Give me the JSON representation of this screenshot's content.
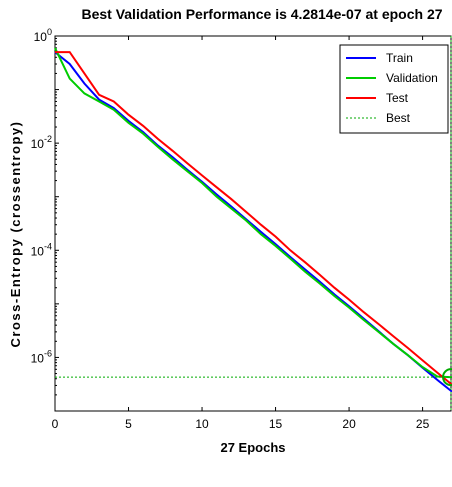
{
  "chart_data": {
    "type": "line",
    "title": "Best Validation Performance is 4.2814e-07 at epoch 27",
    "xlabel": "27 Epochs",
    "ylabel": "Cross-Entropy  (crossentropy)",
    "yscale": "log",
    "xlim": [
      0,
      27
    ],
    "ylim": [
      1e-07,
      1
    ],
    "xticks": [
      "0",
      "5",
      "10",
      "15",
      "20",
      "25"
    ],
    "yticks": [
      {
        "base": "10",
        "exp": "0",
        "value": 1
      },
      {
        "base": "10",
        "exp": "-2",
        "value": 0.01
      },
      {
        "base": "10",
        "exp": "-4",
        "value": 0.0001
      },
      {
        "base": "10",
        "exp": "-6",
        "value": 1e-06
      }
    ],
    "grid": false,
    "legend": "top-right",
    "series": [
      {
        "name": "Train",
        "color": "#0000ff",
        "style": "solid",
        "x": [
          0,
          1,
          2,
          3,
          4,
          5,
          6,
          7,
          8,
          9,
          10,
          11,
          12,
          13,
          14,
          15,
          16,
          17,
          18,
          19,
          20,
          21,
          22,
          23,
          24,
          25,
          26,
          27
        ],
        "y": [
          0.5,
          0.3,
          0.13,
          0.065,
          0.045,
          0.026,
          0.016,
          0.009,
          0.0055,
          0.0032,
          0.0019,
          0.0011,
          0.00065,
          0.00038,
          0.00022,
          0.00013,
          7.5e-05,
          4.4e-05,
          2.6e-05,
          1.5e-05,
          9e-06,
          5.3e-06,
          3.1e-06,
          1.8e-06,
          1.1e-06,
          6.4e-07,
          3.8e-07,
          2.3e-07
        ]
      },
      {
        "name": "Validation",
        "color": "#00cc00",
        "style": "solid",
        "x": [
          0,
          1,
          2,
          3,
          4,
          5,
          6,
          7,
          8,
          9,
          10,
          11,
          12,
          13,
          14,
          15,
          16,
          17,
          18,
          19,
          20,
          21,
          22,
          23,
          24,
          25,
          26,
          27
        ],
        "y": [
          0.6,
          0.16,
          0.085,
          0.06,
          0.042,
          0.024,
          0.015,
          0.0085,
          0.005,
          0.003,
          0.0018,
          0.001,
          0.0006,
          0.00036,
          0.0002,
          0.00012,
          7e-05,
          4e-05,
          2.4e-05,
          1.4e-05,
          8.5e-06,
          5e-06,
          3e-06,
          1.8e-06,
          1.1e-06,
          6.6e-07,
          4.4e-07,
          4.2814e-07
        ]
      },
      {
        "name": "Test",
        "color": "#ff0000",
        "style": "solid",
        "x": [
          0,
          1,
          2,
          3,
          4,
          5,
          6,
          7,
          8,
          9,
          10,
          11,
          12,
          13,
          14,
          15,
          16,
          17,
          18,
          19,
          20,
          21,
          22,
          23,
          24,
          25,
          26,
          27
        ],
        "y": [
          0.5,
          0.5,
          0.2,
          0.08,
          0.06,
          0.034,
          0.021,
          0.012,
          0.0072,
          0.0042,
          0.0025,
          0.0015,
          0.0009,
          0.00052,
          0.0003,
          0.00018,
          0.0001,
          6e-05,
          3.5e-05,
          2e-05,
          1.2e-05,
          7e-06,
          4.2e-06,
          2.5e-06,
          1.5e-06,
          8.8e-07,
          5.2e-07,
          3.1e-07
        ]
      },
      {
        "name": "Best",
        "color": "#00aa00",
        "style": "dotted",
        "x": [
          0,
          27
        ],
        "y": [
          4.2814e-07,
          4.2814e-07
        ],
        "vertical_x": 27
      }
    ],
    "best_marker": {
      "x": 27,
      "y": 4.2814e-07,
      "color": "#00aa00"
    }
  }
}
